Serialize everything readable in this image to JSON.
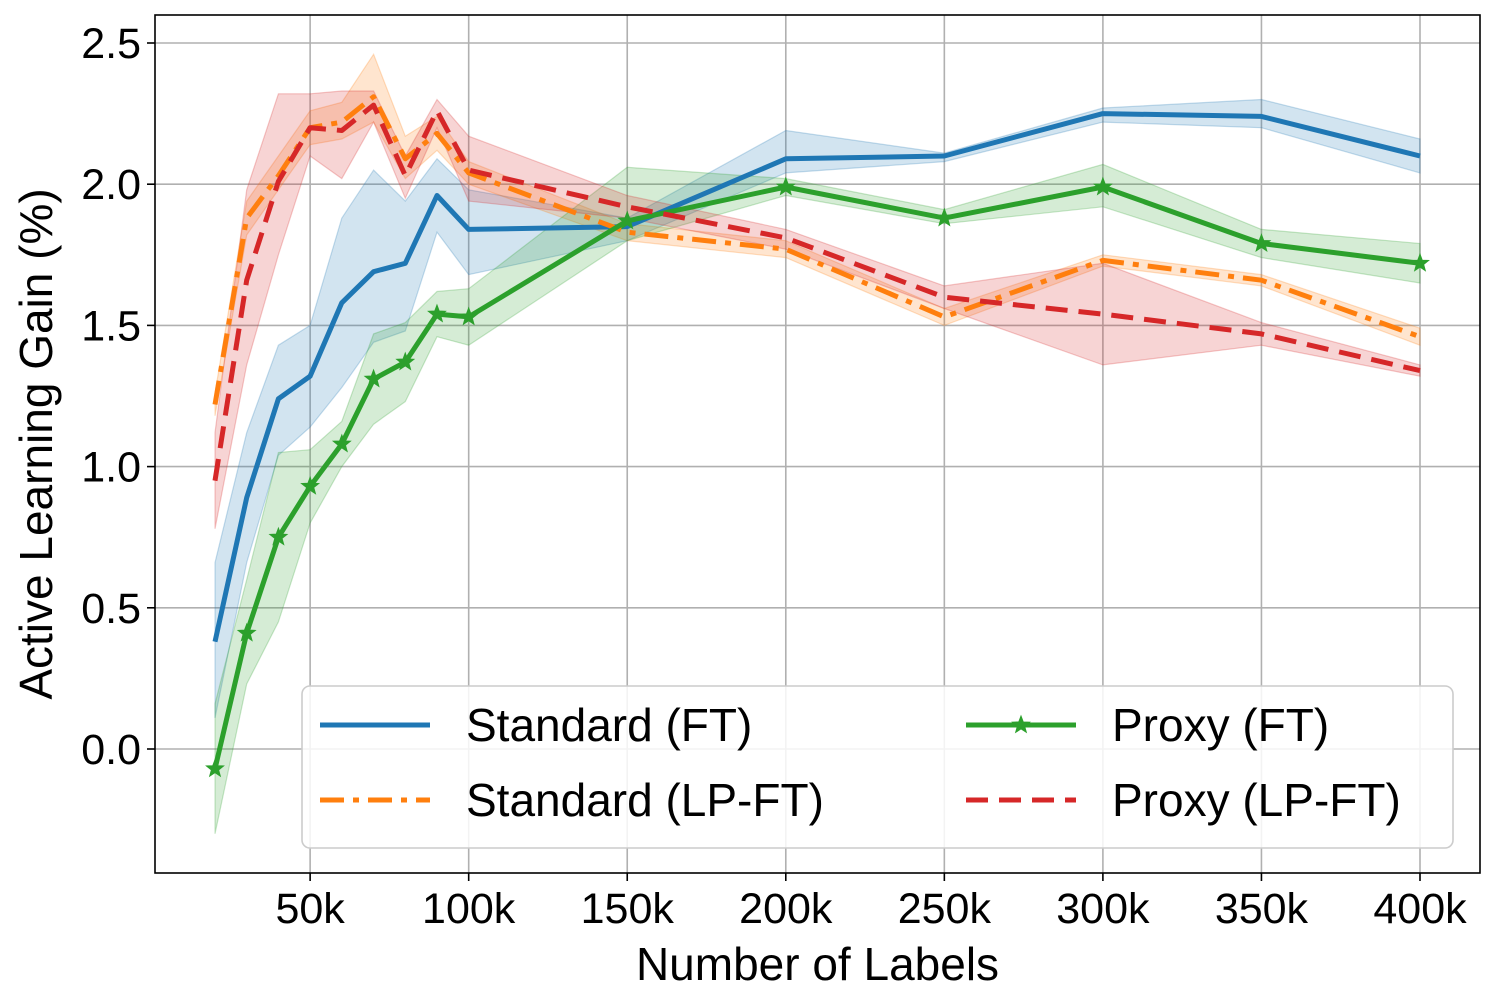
{
  "chart_data": {
    "type": "line",
    "title": "",
    "xlabel": "Number of Labels",
    "ylabel": "Active Learning Gain (%)",
    "xlim": [
      0,
      410000
    ],
    "ylim": [
      -0.44,
      2.6
    ],
    "xticks": [
      50000,
      100000,
      150000,
      200000,
      250000,
      300000,
      350000,
      400000
    ],
    "xtick_labels": [
      "50k",
      "100k",
      "150k",
      "200k",
      "250k",
      "300k",
      "350k",
      "400k"
    ],
    "yticks": [
      0.0,
      0.5,
      1.0,
      1.5,
      2.0,
      2.5
    ],
    "ytick_labels": [
      "0.0",
      "0.5",
      "1.0",
      "1.5",
      "2.0",
      "2.5"
    ],
    "grid": true,
    "legend_position": "lower-right",
    "x": [
      20000,
      30000,
      40000,
      50000,
      60000,
      70000,
      80000,
      90000,
      100000,
      150000,
      200000,
      250000,
      300000,
      350000,
      400000
    ],
    "series": [
      {
        "name": "Standard (FT)",
        "color": "#1f77b4",
        "style": "solid",
        "marker": "none",
        "values": [
          0.38,
          0.89,
          1.24,
          1.32,
          1.58,
          1.69,
          1.72,
          1.96,
          1.84,
          1.85,
          2.09,
          2.1,
          2.25,
          2.24,
          2.1
        ],
        "lower": [
          0.11,
          0.66,
          1.04,
          1.14,
          1.28,
          1.44,
          1.48,
          1.83,
          1.68,
          1.8,
          2.04,
          2.08,
          2.22,
          2.2,
          2.04
        ],
        "upper": [
          0.66,
          1.12,
          1.43,
          1.5,
          1.88,
          2.05,
          1.94,
          2.09,
          1.98,
          1.88,
          2.19,
          2.11,
          2.27,
          2.3,
          2.16
        ]
      },
      {
        "name": "Standard (LP-FT)",
        "color": "#ff7f0e",
        "style": "dashdot",
        "marker": "none",
        "values": [
          1.22,
          1.88,
          2.03,
          2.2,
          2.22,
          2.31,
          2.09,
          2.18,
          2.04,
          1.83,
          1.77,
          1.53,
          1.73,
          1.66,
          1.46
        ],
        "lower": [
          1.18,
          1.82,
          1.98,
          2.14,
          2.16,
          2.22,
          2.02,
          2.12,
          2.0,
          1.8,
          1.74,
          1.5,
          1.71,
          1.64,
          1.43
        ],
        "upper": [
          1.26,
          1.94,
          2.1,
          2.26,
          2.29,
          2.46,
          2.17,
          2.24,
          2.08,
          1.86,
          1.8,
          1.56,
          1.75,
          1.68,
          1.49
        ]
      },
      {
        "name": "Proxy (FT)",
        "color": "#2ca02c",
        "style": "solid",
        "marker": "star",
        "values": [
          -0.07,
          0.41,
          0.75,
          0.93,
          1.08,
          1.31,
          1.37,
          1.54,
          1.53,
          1.87,
          1.99,
          1.88,
          1.99,
          1.79,
          1.72
        ],
        "lower": [
          -0.3,
          0.23,
          0.45,
          0.8,
          1.0,
          1.15,
          1.23,
          1.46,
          1.43,
          1.8,
          1.96,
          1.86,
          1.92,
          1.74,
          1.65
        ],
        "upper": [
          0.16,
          0.6,
          1.05,
          1.06,
          1.16,
          1.47,
          1.51,
          1.62,
          1.63,
          2.06,
          2.02,
          1.91,
          2.07,
          1.84,
          1.79
        ]
      },
      {
        "name": "Proxy (LP-FT)",
        "color": "#d62728",
        "style": "dashed",
        "marker": "none",
        "values": [
          0.95,
          1.66,
          2.01,
          2.2,
          2.19,
          2.28,
          2.03,
          2.26,
          2.05,
          1.92,
          1.81,
          1.6,
          1.54,
          1.47,
          1.34
        ],
        "lower": [
          0.78,
          1.36,
          1.75,
          2.1,
          2.02,
          2.22,
          1.95,
          2.2,
          1.94,
          1.88,
          1.77,
          1.56,
          1.36,
          1.43,
          1.32
        ],
        "upper": [
          1.12,
          1.98,
          2.32,
          2.32,
          2.33,
          2.33,
          2.1,
          2.3,
          2.17,
          1.96,
          1.84,
          1.64,
          1.72,
          1.51,
          1.36
        ]
      }
    ]
  }
}
